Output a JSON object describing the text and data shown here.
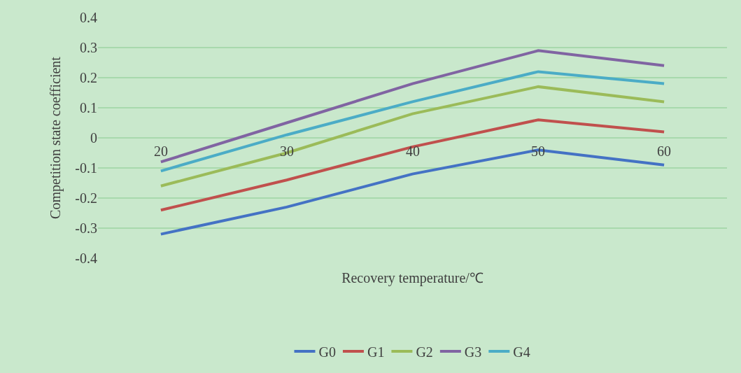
{
  "chart_data": {
    "type": "line",
    "xlabel": "Recovery temperature/℃",
    "ylabel": "Competition state coefficient",
    "categories": [
      "20",
      "30",
      "40",
      "50",
      "60"
    ],
    "series": [
      {
        "name": "G0",
        "color": "#4472c4",
        "values": [
          -0.32,
          -0.23,
          -0.12,
          -0.04,
          -0.09
        ]
      },
      {
        "name": "G1",
        "color": "#c0504d",
        "values": [
          -0.24,
          -0.14,
          -0.03,
          0.06,
          0.02
        ]
      },
      {
        "name": "G2",
        "color": "#9bbb59",
        "values": [
          -0.16,
          -0.05,
          0.08,
          0.17,
          0.12
        ]
      },
      {
        "name": "G3",
        "color": "#8064a2",
        "values": [
          -0.08,
          0.05,
          0.18,
          0.29,
          0.24
        ]
      },
      {
        "name": "G4",
        "color": "#4bacc6",
        "values": [
          -0.11,
          0.01,
          0.12,
          0.22,
          0.18
        ]
      }
    ],
    "ylim": [
      -0.4,
      0.4
    ],
    "yticks": [
      -0.4,
      -0.3,
      -0.2,
      -0.1,
      0,
      0.1,
      0.2,
      0.3,
      0.4
    ],
    "grid": "y",
    "legend": "bottom",
    "marker": "none",
    "line_style": "solid"
  }
}
